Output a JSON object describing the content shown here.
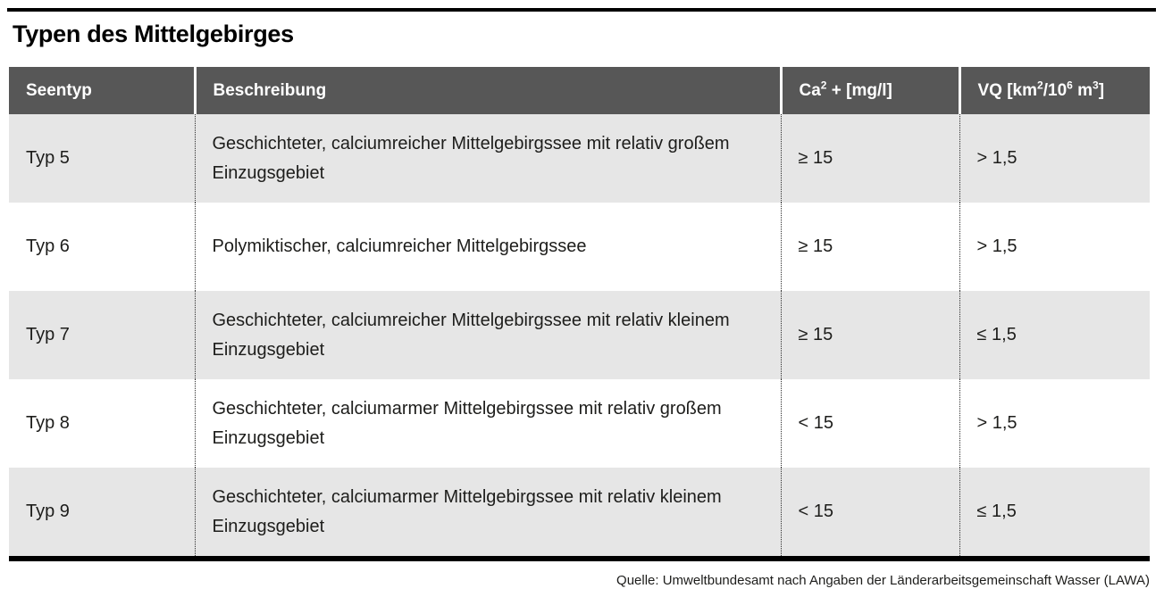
{
  "page": {
    "title": "Typen des Mittelgebirges",
    "source_note": "Quelle: Umweltbundesamt nach Angaben der Länderarbeitsgemeinschaft Wasser (LAWA)"
  },
  "colors": {
    "header_bg": "#575757",
    "header_text": "#ffffff",
    "row_shaded_bg": "#e6e6e6",
    "row_plain_bg": "#ffffff",
    "rule_color": "#000000",
    "body_text": "#1d1d1b"
  },
  "table": {
    "columns": [
      {
        "id": "seentyp",
        "label": "Seentyp",
        "label_parts": [
          {
            "t": "Seentyp"
          }
        ]
      },
      {
        "id": "beschreibung",
        "label": "Beschreibung",
        "label_parts": [
          {
            "t": "Beschreibung"
          }
        ]
      },
      {
        "id": "ca",
        "label": "Ca² + [mg/l]",
        "label_parts": [
          {
            "t": "Ca"
          },
          {
            "t": "2",
            "sup": true
          },
          {
            "t": " + [mg/l]"
          }
        ]
      },
      {
        "id": "vq",
        "label": "VQ [km²/10⁶ m³]",
        "label_parts": [
          {
            "t": "VQ [km"
          },
          {
            "t": "2",
            "sup": true
          },
          {
            "t": "/10"
          },
          {
            "t": "6",
            "sup": true
          },
          {
            "t": " m"
          },
          {
            "t": "3",
            "sup": true
          },
          {
            "t": "]"
          }
        ]
      }
    ],
    "rows": [
      {
        "seentyp": "Typ 5",
        "beschreibung": "Geschichteter, calciumreicher Mittelgebirgssee mit relativ großem Einzugsgebiet",
        "ca": "≥ 15",
        "vq": "> 1,5"
      },
      {
        "seentyp": "Typ 6",
        "beschreibung": "Polymiktischer, calciumreicher Mittelgebirgssee",
        "ca": "≥ 15",
        "vq": "> 1,5"
      },
      {
        "seentyp": "Typ 7",
        "beschreibung": "Geschichteter, calciumreicher Mittelgebirgssee mit relativ kleinem Einzugsgebiet",
        "ca": "≥ 15",
        "vq": "≤ 1,5"
      },
      {
        "seentyp": "Typ 8",
        "beschreibung": "Geschichteter, calciumarmer Mittelgebirgssee mit relativ großem Einzugsgebiet",
        "ca": "< 15",
        "vq": "> 1,5"
      },
      {
        "seentyp": "Typ 9",
        "beschreibung": "Geschichteter, calciumarmer Mittelgebirgssee mit relativ kleinem Einzugsgebiet",
        "ca": "< 15",
        "vq": "≤ 1,5"
      }
    ]
  },
  "chart_data": {
    "type": "table",
    "title": "Typen des Mittelgebirges",
    "columns": [
      "Seentyp",
      "Beschreibung",
      "Ca² + [mg/l]",
      "VQ [km²/10⁶ m³]"
    ],
    "rows": [
      [
        "Typ 5",
        "Geschichteter, calciumreicher Mittelgebirgssee mit relativ großem Einzugsgebiet",
        "≥ 15",
        "> 1,5"
      ],
      [
        "Typ 6",
        "Polymiktischer, calciumreicher Mittelgebirgssee",
        "≥ 15",
        "> 1,5"
      ],
      [
        "Typ 7",
        "Geschichteter, calciumreicher Mittelgebirgssee mit relativ kleinem Einzugsgebiet",
        "≥ 15",
        "≤ 1,5"
      ],
      [
        "Typ 8",
        "Geschichteter, calciumarmer Mittelgebirgssee mit relativ großem Einzugsgebiet",
        "< 15",
        "> 1,5"
      ],
      [
        "Typ 9",
        "Geschichteter, calciumarmer Mittelgebirgssee mit relativ kleinem Einzugsgebiet",
        "< 15",
        "≤ 1,5"
      ]
    ],
    "source": "Quelle: Umweltbundesamt nach Angaben der Länderarbeitsgemeinschaft Wasser (LAWA)"
  }
}
